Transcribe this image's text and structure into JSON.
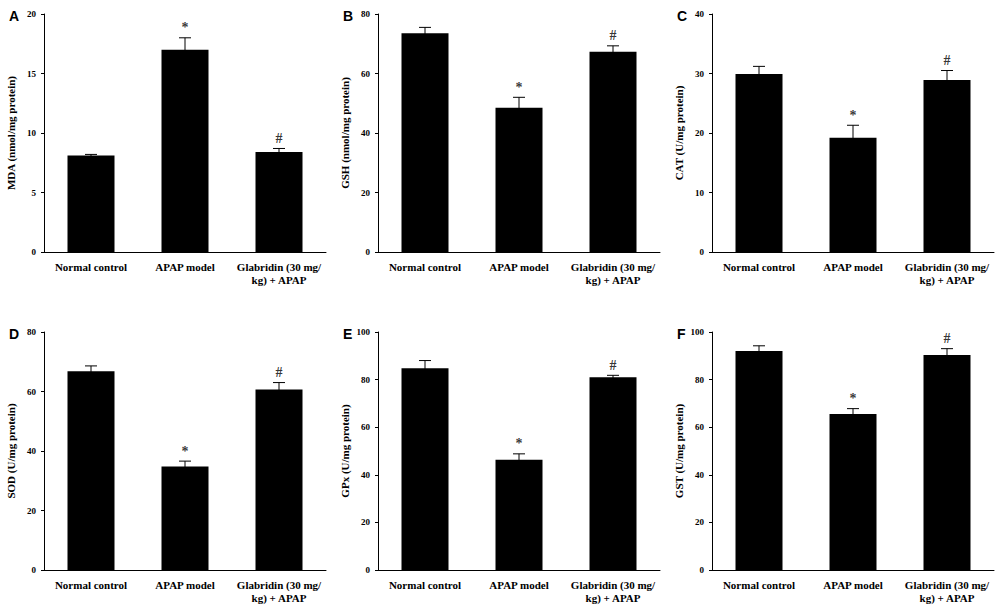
{
  "chart_data": [
    {
      "type": "bar",
      "title": "A",
      "y_label": "MDA (nmol/mg protein)",
      "categories": [
        "Normal control",
        "APAP model",
        "Glabridin (30 mg/kg) + APAP"
      ],
      "values": [
        8.1,
        17.0,
        8.4
      ],
      "errors": [
        0.1,
        1.0,
        0.3
      ],
      "color": "#000000",
      "ylim": [
        0,
        20
      ],
      "yticks": [
        0,
        5,
        10,
        15,
        20
      ],
      "grid": false,
      "annotations": [
        {
          "category": "APAP model",
          "text": "*"
        },
        {
          "category": "Glabridin (30 mg/kg) + APAP",
          "text": "#"
        }
      ]
    },
    {
      "type": "bar",
      "title": "B",
      "y_label": "GSH (nmol/mg protein)",
      "categories": [
        "Normal control",
        "APAP model",
        "Glabridin (30 mg/kg) + APAP"
      ],
      "values": [
        73.5,
        48.5,
        67.3
      ],
      "errors": [
        2.0,
        3.5,
        2.0
      ],
      "color": "#000000",
      "ylim": [
        0,
        80
      ],
      "yticks": [
        0,
        20,
        40,
        60,
        80
      ],
      "grid": false,
      "annotations": [
        {
          "category": "APAP model",
          "text": "*"
        },
        {
          "category": "Glabridin (30 mg/kg) + APAP",
          "text": "#"
        }
      ]
    },
    {
      "type": "bar",
      "title": "C",
      "y_label": "CAT (U/mg protein)",
      "categories": [
        "Normal control",
        "APAP model",
        "Glabridin (30 mg/kg) + APAP"
      ],
      "values": [
        29.9,
        19.2,
        28.9
      ],
      "errors": [
        1.3,
        2.1,
        1.6
      ],
      "color": "#000000",
      "ylim": [
        0,
        40
      ],
      "yticks": [
        0,
        10,
        20,
        30,
        40
      ],
      "grid": false,
      "annotations": [
        {
          "category": "APAP model",
          "text": "*"
        },
        {
          "category": "Glabridin (30 mg/kg) + APAP",
          "text": "#"
        }
      ]
    },
    {
      "type": "bar",
      "title": "D",
      "y_label": "SOD (U/mg protein)",
      "categories": [
        "Normal control",
        "APAP model",
        "Glabridin (30 mg/kg) + APAP"
      ],
      "values": [
        66.8,
        34.8,
        60.7
      ],
      "errors": [
        1.8,
        1.8,
        2.3
      ],
      "color": "#000000",
      "ylim": [
        0,
        80
      ],
      "yticks": [
        0,
        20,
        40,
        60,
        80
      ],
      "grid": false,
      "annotations": [
        {
          "category": "APAP model",
          "text": "*"
        },
        {
          "category": "Glabridin (30 mg/kg) + APAP",
          "text": "#"
        }
      ]
    },
    {
      "type": "bar",
      "title": "E",
      "y_label": "GPx (U/mg protein)",
      "categories": [
        "Normal control",
        "APAP model",
        "Glabridin (30 mg/kg) + APAP"
      ],
      "values": [
        84.8,
        46.3,
        81.0
      ],
      "errors": [
        3.2,
        2.5,
        0.8
      ],
      "color": "#000000",
      "ylim": [
        0,
        100
      ],
      "yticks": [
        0,
        20,
        40,
        60,
        80,
        100
      ],
      "grid": false,
      "annotations": [
        {
          "category": "APAP model",
          "text": "*"
        },
        {
          "category": "Glabridin (30 mg/kg) + APAP",
          "text": "#"
        }
      ]
    },
    {
      "type": "bar",
      "title": "F",
      "y_label": "GST (U/mg protein)",
      "categories": [
        "Normal control",
        "APAP model",
        "Glabridin (30 mg/kg) + APAP"
      ],
      "values": [
        92.0,
        65.5,
        90.3
      ],
      "errors": [
        2.2,
        2.3,
        2.7
      ],
      "color": "#000000",
      "ylim": [
        0,
        100
      ],
      "yticks": [
        0,
        20,
        40,
        60,
        80,
        100
      ],
      "grid": false,
      "annotations": [
        {
          "category": "APAP model",
          "text": "*"
        },
        {
          "category": "Glabridin (30 mg/kg) + APAP",
          "text": "#"
        }
      ]
    }
  ]
}
